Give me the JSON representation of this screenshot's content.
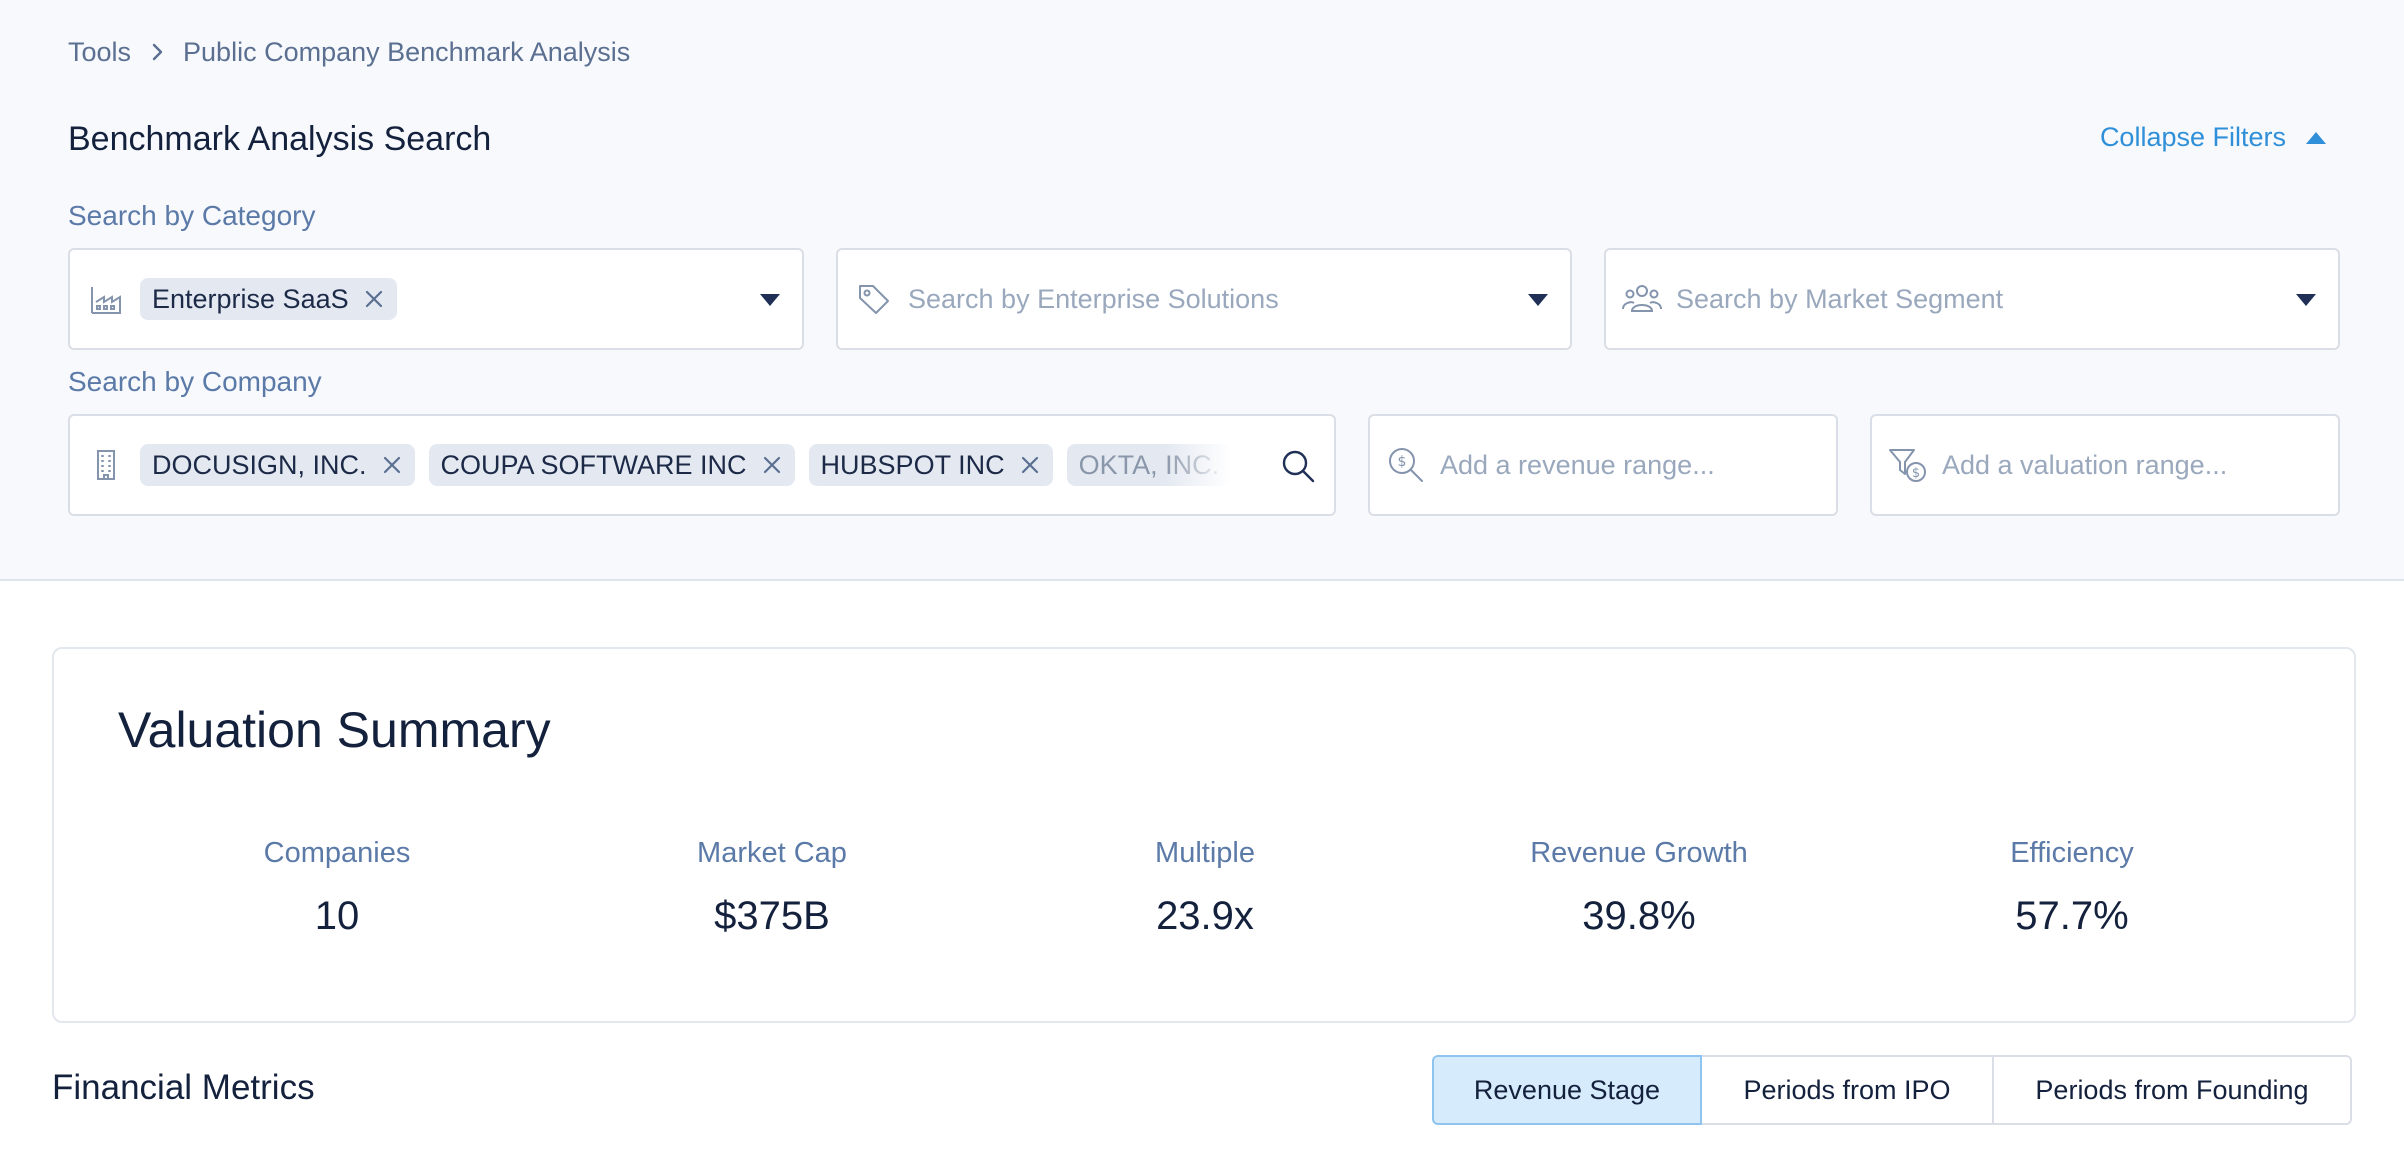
{
  "breadcrumb": {
    "items": [
      "Tools",
      "Public Company Benchmark Analysis"
    ]
  },
  "filters": {
    "title": "Benchmark Analysis Search",
    "collapse_label": "Collapse Filters",
    "category": {
      "label": "Search by Category",
      "industry": {
        "icon": "industry-icon",
        "chips": [
          "Enterprise SaaS"
        ]
      },
      "solutions": {
        "icon": "tag-icon",
        "placeholder": "Search by Enterprise Solutions"
      },
      "segment": {
        "icon": "users-icon",
        "placeholder": "Search by Market Segment"
      }
    },
    "company": {
      "label": "Search by Company",
      "icon": "building-icon",
      "chips": [
        "DOCUSIGN, INC.",
        "COUPA SOFTWARE INC",
        "HUBSPOT INC",
        "OKTA, INC."
      ],
      "revenue_placeholder": "Add a revenue range...",
      "valuation_placeholder": "Add a valuation range..."
    }
  },
  "summary": {
    "title": "Valuation Summary",
    "stats": [
      {
        "label": "Companies",
        "value": "10"
      },
      {
        "label": "Market Cap",
        "value": "$375B"
      },
      {
        "label": "Multiple",
        "value": "23.9x"
      },
      {
        "label": "Revenue Growth",
        "value": "39.8%"
      },
      {
        "label": "Efficiency",
        "value": "57.7%"
      }
    ]
  },
  "financial": {
    "title": "Financial Metrics",
    "tabs": [
      "Revenue Stage",
      "Periods from IPO",
      "Periods from Founding"
    ],
    "active_tab": "Revenue Stage"
  },
  "colors": {
    "accent": "#2f8fd8",
    "label": "#5b7aa8",
    "text": "#14213d",
    "active_tab_bg": "#d6ebfb"
  }
}
